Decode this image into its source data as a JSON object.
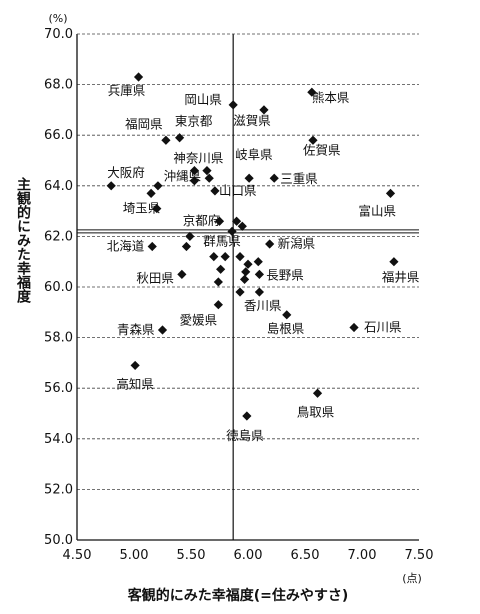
{
  "chart_data": {
    "type": "scatter",
    "xlabel": "客観的にみた幸福度(=住みやすさ)",
    "ylabel": "主観的にみた幸福度",
    "x_unit": "(点)",
    "y_unit": "(%)",
    "xlim": [
      4.5,
      7.5
    ],
    "ylim": [
      50.0,
      70.0
    ],
    "x_ticks": [
      "4.50",
      "5.00",
      "5.50",
      "6.00",
      "6.50",
      "7.00",
      "7.50"
    ],
    "y_ticks": [
      "50.0",
      "52.0",
      "54.0",
      "56.0",
      "58.0",
      "60.0",
      "62.0",
      "64.0",
      "66.0",
      "68.0",
      "70.0"
    ],
    "grid": "horizontal-dashed",
    "reference_lines": {
      "x": 5.87,
      "y": 62.2
    },
    "points": [
      {
        "name": "兵庫県",
        "x": 5.04,
        "y": 68.3
      },
      {
        "name": "岡山県",
        "x": 5.87,
        "y": 67.2
      },
      {
        "name": "熊本県",
        "x": 6.56,
        "y": 67.7
      },
      {
        "name": "滋賀県",
        "x": 6.14,
        "y": 67.0
      },
      {
        "name": "福岡県",
        "x": 5.28,
        "y": 65.8
      },
      {
        "name": "東京都",
        "x": 5.4,
        "y": 65.9
      },
      {
        "name": "佐賀県",
        "x": 6.57,
        "y": 65.8
      },
      {
        "name": "神奈川県",
        "x": 5.53,
        "y": 64.6
      },
      {
        "name": "岐阜県",
        "x": 6.01,
        "y": 64.3
      },
      {
        "name": "大阪府",
        "x": 4.8,
        "y": 64.0
      },
      {
        "name": "沖縄県",
        "x": 5.53,
        "y": 64.2
      },
      {
        "name": "三重県",
        "x": 6.23,
        "y": 64.3
      },
      {
        "name": "山口県",
        "x": 5.71,
        "y": 63.8
      },
      {
        "name": "埼玉県",
        "x": 5.2,
        "y": 63.1
      },
      {
        "name": "富山県",
        "x": 7.25,
        "y": 63.7
      },
      {
        "name": "京都府",
        "x": 5.75,
        "y": 62.6
      },
      {
        "name": "北海道",
        "x": 5.16,
        "y": 61.6
      },
      {
        "name": "群馬県",
        "x": 5.86,
        "y": 62.2
      },
      {
        "name": "新潟県",
        "x": 6.19,
        "y": 61.7
      },
      {
        "name": "長野県",
        "x": 6.09,
        "y": 61.0
      },
      {
        "name": "福井県",
        "x": 7.28,
        "y": 61.0
      },
      {
        "name": "秋田県",
        "x": 5.42,
        "y": 60.5
      },
      {
        "name": "愛媛県",
        "x": 5.74,
        "y": 59.3
      },
      {
        "name": "香川県",
        "x": 5.93,
        "y": 59.8
      },
      {
        "name": "島根県",
        "x": 6.34,
        "y": 58.9
      },
      {
        "name": "石川県",
        "x": 6.93,
        "y": 58.4
      },
      {
        "name": "青森県",
        "x": 5.25,
        "y": 58.3
      },
      {
        "name": "高知県",
        "x": 5.01,
        "y": 56.9
      },
      {
        "name": "鳥取県",
        "x": 6.61,
        "y": 55.8
      },
      {
        "name": "徳島県",
        "x": 5.99,
        "y": 54.9
      },
      {
        "name": "",
        "x": 5.15,
        "y": 63.7
      },
      {
        "name": "",
        "x": 5.21,
        "y": 64.0
      },
      {
        "name": "",
        "x": 5.49,
        "y": 62.0
      },
      {
        "name": "",
        "x": 5.46,
        "y": 61.6
      },
      {
        "name": "",
        "x": 5.64,
        "y": 64.6
      },
      {
        "name": "",
        "x": 5.66,
        "y": 64.3
      },
      {
        "name": "",
        "x": 5.9,
        "y": 62.6
      },
      {
        "name": "",
        "x": 5.95,
        "y": 62.4
      },
      {
        "name": "",
        "x": 5.7,
        "y": 61.2
      },
      {
        "name": "",
        "x": 5.8,
        "y": 61.2
      },
      {
        "name": "",
        "x": 5.93,
        "y": 61.2
      },
      {
        "name": "",
        "x": 5.76,
        "y": 60.7
      },
      {
        "name": "",
        "x": 5.74,
        "y": 60.2
      },
      {
        "name": "",
        "x": 5.98,
        "y": 60.6
      },
      {
        "name": "",
        "x": 5.97,
        "y": 60.3
      },
      {
        "name": "",
        "x": 6.0,
        "y": 60.9
      },
      {
        "name": "",
        "x": 6.1,
        "y": 60.5
      },
      {
        "name": "",
        "x": 6.1,
        "y": 59.8
      }
    ]
  }
}
